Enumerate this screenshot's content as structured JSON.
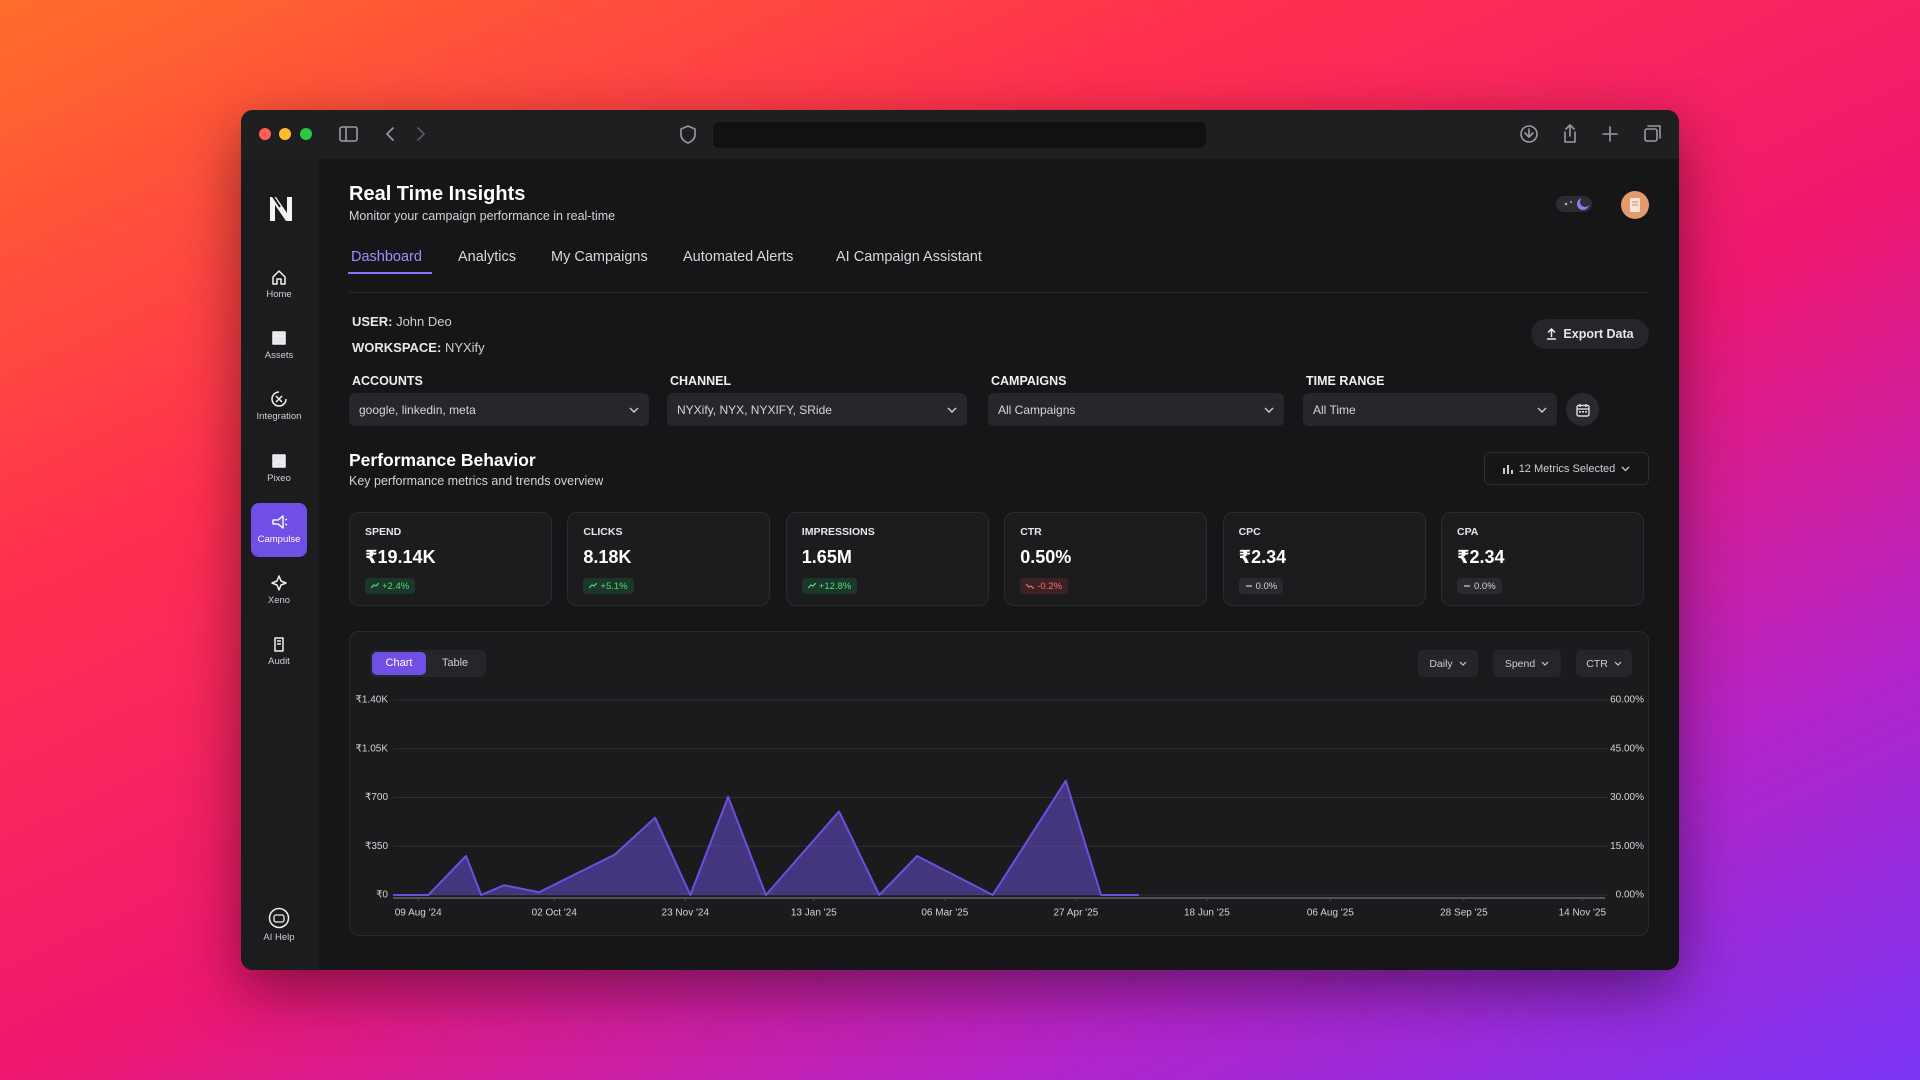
{
  "sidebar": {
    "items": [
      "Home",
      "Assets",
      "Integration",
      "Pixeo",
      "Campulse",
      "Xeno",
      "Audit"
    ],
    "active": 4,
    "help": "AI Help"
  },
  "header": {
    "title": "Real Time Insights",
    "subtitle": "Monitor your campaign performance in real-time"
  },
  "tabs": {
    "items": [
      "Dashboard",
      "Analytics",
      "My Campaigns",
      "Automated Alerts",
      "AI Campaign Assistant"
    ],
    "active": 0
  },
  "user": {
    "user_label": "USER:",
    "user": "John Deo",
    "workspace_label": "WORKSPACE:",
    "workspace": "NYXify"
  },
  "export": "Export Data",
  "filters": [
    {
      "label": "ACCOUNTS",
      "value": "google, linkedin, meta"
    },
    {
      "label": "CHANNEL",
      "value": "NYXify, NYX, NYXIFY, SRide"
    },
    {
      "label": "CAMPAIGNS",
      "value": "All Campaigns"
    },
    {
      "label": "TIME RANGE",
      "value": "All Time"
    }
  ],
  "performance": {
    "title": "Performance Behavior",
    "subtitle": "Key performance metrics and trends overview",
    "metrics_button": "12 Metrics Selected"
  },
  "metrics": [
    {
      "label": "SPEND",
      "value": "₹19.14K",
      "change": "+2.4%"
    },
    {
      "label": "CLICKS",
      "value": "8.18K",
      "change": "+5.1%"
    },
    {
      "label": "IMPRESSIONS",
      "value": "1.65M",
      "change": "+12.8%"
    },
    {
      "label": "CTR",
      "value": "0.50%",
      "change": "-0.2%"
    },
    {
      "label": "CPC",
      "value": "₹2.34",
      "change": "0.0%"
    },
    {
      "label": "CPA",
      "value": "₹2.34",
      "change": "0.0%"
    }
  ],
  "chart_controls": {
    "views": [
      "Chart",
      "Table"
    ],
    "active_view": 0,
    "granularity": "Daily",
    "right_metric": "CTR"
  },
  "chart_data": {
    "type": "area",
    "x": [
      "30 Jul '24",
      "13 Aug '24",
      "28 Aug '24",
      "03 Sep '24",
      "12 Sep '24",
      "26 Sep '24",
      "26 Oct '24",
      "11 Nov '24",
      "25 Nov '24",
      "10 Dec '24",
      "25 Dec '24",
      "23 Jan '25",
      "08 Feb '25",
      "23 Feb '25",
      "25 Mar '25",
      "23 Apr '25",
      "07 May '25",
      "22 May '25"
    ],
    "series": [
      {
        "name": "Spend",
        "color": "#6d4fe0",
        "values": [
          0,
          0,
          280,
          0,
          70,
          20,
          290,
          555,
          0,
          705,
          0,
          600,
          0,
          280,
          0,
          820,
          0,
          0
        ]
      }
    ],
    "xlim": [
      "30 Jul '24",
      "23 Nov '25"
    ],
    "xticks": [
      "09 Aug '24",
      "02 Oct '24",
      "23 Nov '24",
      "13 Jan '25",
      "06 Mar '25",
      "27 Apr '25",
      "18 Jun '25",
      "06 Aug '25",
      "28 Sep '25",
      "14 Nov '25"
    ],
    "ylim": [
      0,
      1400
    ],
    "yticks": [
      {
        "value": 0,
        "label": "₹0"
      },
      {
        "value": 350,
        "label": "₹350"
      },
      {
        "value": 700,
        "label": "₹700"
      },
      {
        "value": 1050,
        "label": "₹1.05K"
      },
      {
        "value": 1400,
        "label": "₹1.40K"
      }
    ],
    "y2lim": [
      0,
      60
    ],
    "y2ticks": [
      {
        "value": 0,
        "label": "0.00%"
      },
      {
        "value": 15,
        "label": "15.00%"
      },
      {
        "value": 30,
        "label": "30.00%"
      },
      {
        "value": 45,
        "label": "45.00%"
      },
      {
        "value": 60,
        "label": "60.00%"
      }
    ],
    "grid": true
  }
}
